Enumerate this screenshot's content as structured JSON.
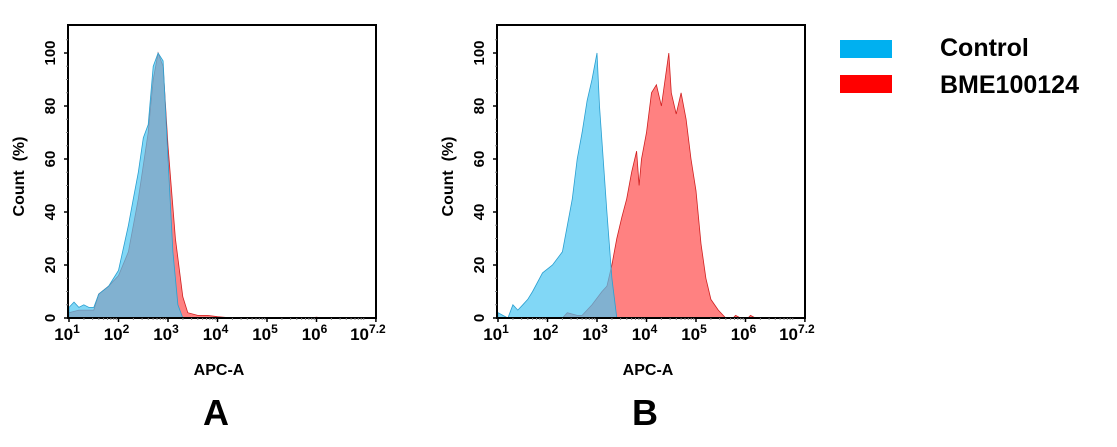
{
  "legend": {
    "items": [
      {
        "label": "Control",
        "color": "#00b0f0"
      },
      {
        "label": "BME100124",
        "color": "#ff0000"
      }
    ]
  },
  "chart_data": [
    {
      "type": "area",
      "panel_label": "A",
      "xlabel": "APC-A",
      "ylabel": "Count  (%)",
      "x_scale": "log",
      "xlim_log10": [
        1,
        7.2
      ],
      "ylim": [
        0,
        110
      ],
      "x_ticks": [
        {
          "base": "10",
          "exp": "1"
        },
        {
          "base": "10",
          "exp": "2"
        },
        {
          "base": "10",
          "exp": "3"
        },
        {
          "base": "10",
          "exp": "4"
        },
        {
          "base": "10",
          "exp": "5"
        },
        {
          "base": "10",
          "exp": "6"
        },
        {
          "base": "10",
          "exp": "7.2"
        }
      ],
      "y_ticks": [
        "0",
        "20",
        "40",
        "60",
        "80",
        "100"
      ],
      "series": [
        {
          "name": "BME100124",
          "color": "#ff6b6b",
          "log10_x": [
            1.0,
            1.2,
            1.5,
            1.6,
            1.8,
            2.0,
            2.2,
            2.4,
            2.6,
            2.7,
            2.8,
            2.9,
            3.0,
            3.15,
            3.3,
            3.4,
            3.6,
            3.8,
            4.0,
            4.3,
            5.9,
            6.0,
            6.1
          ],
          "y": [
            2,
            3,
            3,
            9,
            12,
            16,
            25,
            45,
            70,
            90,
            100,
            95,
            65,
            30,
            8,
            2,
            1,
            1,
            0.5,
            0,
            0,
            0.3,
            0
          ]
        },
        {
          "name": "Control",
          "color": "#4cc6f2",
          "log10_x": [
            1.0,
            1.1,
            1.2,
            1.3,
            1.4,
            1.5,
            1.6,
            1.8,
            2.0,
            2.2,
            2.3,
            2.4,
            2.5,
            2.6,
            2.7,
            2.8,
            2.9,
            3.0,
            3.1,
            3.2,
            3.3
          ],
          "y": [
            4,
            6,
            4,
            5,
            4,
            4,
            9,
            12,
            18,
            35,
            45,
            55,
            68,
            73,
            95,
            100,
            97,
            60,
            25,
            5,
            0
          ]
        }
      ]
    },
    {
      "type": "area",
      "panel_label": "B",
      "xlabel": "APC-A",
      "ylabel": "Count  (%)",
      "x_scale": "log",
      "xlim_log10": [
        1,
        7.2
      ],
      "ylim": [
        0,
        110
      ],
      "x_ticks": [
        {
          "base": "10",
          "exp": "1"
        },
        {
          "base": "10",
          "exp": "2"
        },
        {
          "base": "10",
          "exp": "3"
        },
        {
          "base": "10",
          "exp": "4"
        },
        {
          "base": "10",
          "exp": "5"
        },
        {
          "base": "10",
          "exp": "6"
        },
        {
          "base": "10",
          "exp": "7.2"
        }
      ],
      "y_ticks": [
        "0",
        "20",
        "40",
        "60",
        "80",
        "100"
      ],
      "series": [
        {
          "name": "BME100124",
          "color": "#ff6b6b",
          "log10_x": [
            2.3,
            2.4,
            2.6,
            2.7,
            2.9,
            3.1,
            3.2,
            3.3,
            3.35,
            3.4,
            3.5,
            3.6,
            3.7,
            3.8,
            3.85,
            3.9,
            4.0,
            4.1,
            4.2,
            4.3,
            4.45,
            4.5,
            4.6,
            4.7,
            4.8,
            4.9,
            5.0,
            5.1,
            5.2,
            5.3,
            5.45,
            5.6,
            5.75,
            5.8,
            5.9,
            6.05,
            6.1,
            6.2
          ],
          "y": [
            0,
            2,
            1,
            1,
            5,
            10,
            12,
            20,
            25,
            30,
            38,
            45,
            55,
            63,
            50,
            60,
            70,
            85,
            88,
            80,
            100,
            85,
            77,
            85,
            75,
            60,
            48,
            28,
            15,
            7,
            3,
            0,
            0,
            1,
            0,
            0,
            1,
            0
          ]
        },
        {
          "name": "Control",
          "color": "#4cc6f2",
          "log10_x": [
            1.0,
            1.1,
            1.2,
            1.3,
            1.4,
            1.5,
            1.6,
            1.7,
            1.9,
            2.1,
            2.3,
            2.5,
            2.6,
            2.7,
            2.8,
            2.9,
            3.0,
            3.05,
            3.2,
            3.3,
            3.4
          ],
          "y": [
            2,
            1,
            0,
            5,
            3,
            5,
            7,
            10,
            17,
            20,
            25,
            45,
            60,
            70,
            82,
            90,
            100,
            80,
            40,
            15,
            0
          ]
        }
      ]
    }
  ]
}
